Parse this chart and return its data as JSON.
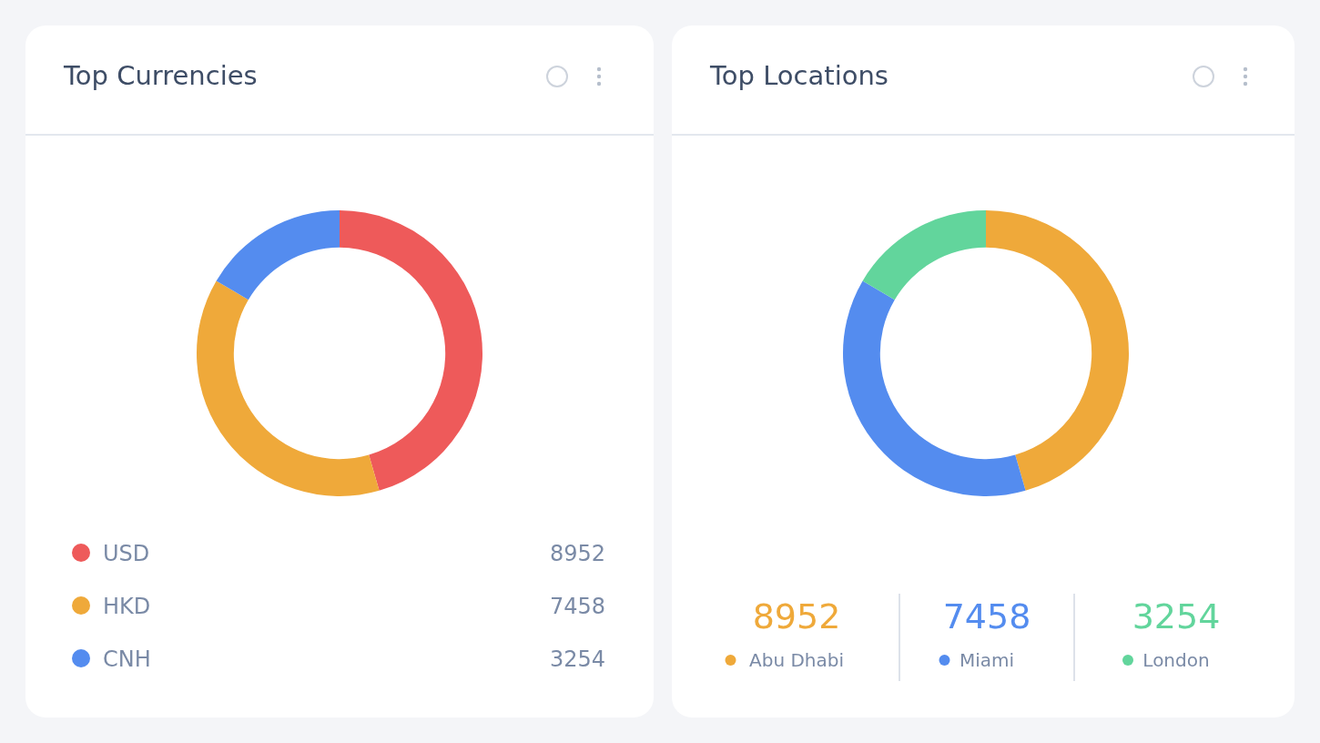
{
  "chart_data": [
    {
      "type": "donut",
      "title": "Top Currencies",
      "categories": [
        "USD",
        "HKD",
        "CNH"
      ],
      "values": [
        8952,
        7458,
        3254
      ],
      "colors": [
        "#ee5a5a",
        "#efa93a",
        "#548cef"
      ],
      "legend": "bottom",
      "data_labels": true
    },
    {
      "type": "donut",
      "title": "Top Locations",
      "categories": [
        "Abu Dhabi",
        "Miami",
        "London"
      ],
      "values": [
        8952,
        7458,
        3254
      ],
      "colors": [
        "#efa93a",
        "#548cef",
        "#62d59c"
      ],
      "legend": "bottom",
      "data_labels": true
    }
  ]
}
